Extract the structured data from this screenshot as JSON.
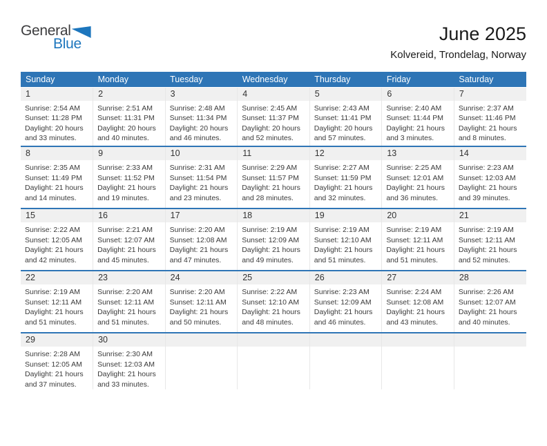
{
  "logo": {
    "part1": "General",
    "part2": "Blue"
  },
  "header": {
    "title": "June 2025",
    "location": "Kolvereid, Trondelag, Norway"
  },
  "colors": {
    "accent_blue": "#2e75b6",
    "logo_blue": "#1d76bd",
    "day_strip_gray": "#f0f0f0"
  },
  "calendar": {
    "weekdays": [
      "Sunday",
      "Monday",
      "Tuesday",
      "Wednesday",
      "Thursday",
      "Friday",
      "Saturday"
    ],
    "weeks": [
      [
        {
          "day": "1",
          "sunrise": "Sunrise: 2:54 AM",
          "sunset": "Sunset: 11:28 PM",
          "daylight": "Daylight: 20 hours and 33 minutes."
        },
        {
          "day": "2",
          "sunrise": "Sunrise: 2:51 AM",
          "sunset": "Sunset: 11:31 PM",
          "daylight": "Daylight: 20 hours and 40 minutes."
        },
        {
          "day": "3",
          "sunrise": "Sunrise: 2:48 AM",
          "sunset": "Sunset: 11:34 PM",
          "daylight": "Daylight: 20 hours and 46 minutes."
        },
        {
          "day": "4",
          "sunrise": "Sunrise: 2:45 AM",
          "sunset": "Sunset: 11:37 PM",
          "daylight": "Daylight: 20 hours and 52 minutes."
        },
        {
          "day": "5",
          "sunrise": "Sunrise: 2:43 AM",
          "sunset": "Sunset: 11:41 PM",
          "daylight": "Daylight: 20 hours and 57 minutes."
        },
        {
          "day": "6",
          "sunrise": "Sunrise: 2:40 AM",
          "sunset": "Sunset: 11:44 PM",
          "daylight": "Daylight: 21 hours and 3 minutes."
        },
        {
          "day": "7",
          "sunrise": "Sunrise: 2:37 AM",
          "sunset": "Sunset: 11:46 PM",
          "daylight": "Daylight: 21 hours and 8 minutes."
        }
      ],
      [
        {
          "day": "8",
          "sunrise": "Sunrise: 2:35 AM",
          "sunset": "Sunset: 11:49 PM",
          "daylight": "Daylight: 21 hours and 14 minutes."
        },
        {
          "day": "9",
          "sunrise": "Sunrise: 2:33 AM",
          "sunset": "Sunset: 11:52 PM",
          "daylight": "Daylight: 21 hours and 19 minutes."
        },
        {
          "day": "10",
          "sunrise": "Sunrise: 2:31 AM",
          "sunset": "Sunset: 11:54 PM",
          "daylight": "Daylight: 21 hours and 23 minutes."
        },
        {
          "day": "11",
          "sunrise": "Sunrise: 2:29 AM",
          "sunset": "Sunset: 11:57 PM",
          "daylight": "Daylight: 21 hours and 28 minutes."
        },
        {
          "day": "12",
          "sunrise": "Sunrise: 2:27 AM",
          "sunset": "Sunset: 11:59 PM",
          "daylight": "Daylight: 21 hours and 32 minutes."
        },
        {
          "day": "13",
          "sunrise": "Sunrise: 2:25 AM",
          "sunset": "Sunset: 12:01 AM",
          "daylight": "Daylight: 21 hours and 36 minutes."
        },
        {
          "day": "14",
          "sunrise": "Sunrise: 2:23 AM",
          "sunset": "Sunset: 12:03 AM",
          "daylight": "Daylight: 21 hours and 39 minutes."
        }
      ],
      [
        {
          "day": "15",
          "sunrise": "Sunrise: 2:22 AM",
          "sunset": "Sunset: 12:05 AM",
          "daylight": "Daylight: 21 hours and 42 minutes."
        },
        {
          "day": "16",
          "sunrise": "Sunrise: 2:21 AM",
          "sunset": "Sunset: 12:07 AM",
          "daylight": "Daylight: 21 hours and 45 minutes."
        },
        {
          "day": "17",
          "sunrise": "Sunrise: 2:20 AM",
          "sunset": "Sunset: 12:08 AM",
          "daylight": "Daylight: 21 hours and 47 minutes."
        },
        {
          "day": "18",
          "sunrise": "Sunrise: 2:19 AM",
          "sunset": "Sunset: 12:09 AM",
          "daylight": "Daylight: 21 hours and 49 minutes."
        },
        {
          "day": "19",
          "sunrise": "Sunrise: 2:19 AM",
          "sunset": "Sunset: 12:10 AM",
          "daylight": "Daylight: 21 hours and 51 minutes."
        },
        {
          "day": "20",
          "sunrise": "Sunrise: 2:19 AM",
          "sunset": "Sunset: 12:11 AM",
          "daylight": "Daylight: 21 hours and 51 minutes."
        },
        {
          "day": "21",
          "sunrise": "Sunrise: 2:19 AM",
          "sunset": "Sunset: 12:11 AM",
          "daylight": "Daylight: 21 hours and 52 minutes."
        }
      ],
      [
        {
          "day": "22",
          "sunrise": "Sunrise: 2:19 AM",
          "sunset": "Sunset: 12:11 AM",
          "daylight": "Daylight: 21 hours and 51 minutes."
        },
        {
          "day": "23",
          "sunrise": "Sunrise: 2:20 AM",
          "sunset": "Sunset: 12:11 AM",
          "daylight": "Daylight: 21 hours and 51 minutes."
        },
        {
          "day": "24",
          "sunrise": "Sunrise: 2:20 AM",
          "sunset": "Sunset: 12:11 AM",
          "daylight": "Daylight: 21 hours and 50 minutes."
        },
        {
          "day": "25",
          "sunrise": "Sunrise: 2:22 AM",
          "sunset": "Sunset: 12:10 AM",
          "daylight": "Daylight: 21 hours and 48 minutes."
        },
        {
          "day": "26",
          "sunrise": "Sunrise: 2:23 AM",
          "sunset": "Sunset: 12:09 AM",
          "daylight": "Daylight: 21 hours and 46 minutes."
        },
        {
          "day": "27",
          "sunrise": "Sunrise: 2:24 AM",
          "sunset": "Sunset: 12:08 AM",
          "daylight": "Daylight: 21 hours and 43 minutes."
        },
        {
          "day": "28",
          "sunrise": "Sunrise: 2:26 AM",
          "sunset": "Sunset: 12:07 AM",
          "daylight": "Daylight: 21 hours and 40 minutes."
        }
      ],
      [
        {
          "day": "29",
          "sunrise": "Sunrise: 2:28 AM",
          "sunset": "Sunset: 12:05 AM",
          "daylight": "Daylight: 21 hours and 37 minutes."
        },
        {
          "day": "30",
          "sunrise": "Sunrise: 2:30 AM",
          "sunset": "Sunset: 12:03 AM",
          "daylight": "Daylight: 21 hours and 33 minutes."
        },
        null,
        null,
        null,
        null,
        null
      ]
    ]
  }
}
